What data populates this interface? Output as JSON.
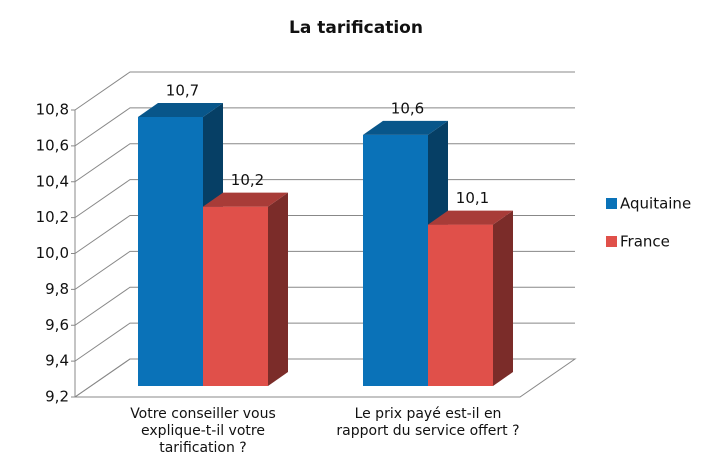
{
  "chart_data": {
    "type": "bar3d",
    "title": "La tarification",
    "categories": [
      "Votre conseiller vous explique-t-il votre tarification ?",
      "Le prix payé est-il en rapport du service offert ?"
    ],
    "series": [
      {
        "name": "Aquitaine",
        "color": "#0a72b8",
        "values": [
          10.7,
          10.6
        ],
        "value_labels": [
          "10,7",
          "10,6"
        ]
      },
      {
        "name": "France",
        "color": "#e0504a",
        "values": [
          10.2,
          10.1
        ],
        "value_labels": [
          "10,2",
          "10,1"
        ]
      }
    ],
    "ylim": [
      9.2,
      10.8
    ],
    "yticks": [
      {
        "value": 9.2,
        "label": "9,2"
      },
      {
        "value": 9.4,
        "label": "9,4"
      },
      {
        "value": 9.6,
        "label": "9,6"
      },
      {
        "value": 9.8,
        "label": "9,8"
      },
      {
        "value": 10.0,
        "label": "10,0"
      },
      {
        "value": 10.2,
        "label": "10,2"
      },
      {
        "value": 10.4,
        "label": "10,4"
      },
      {
        "value": 10.6,
        "label": "10,6"
      },
      {
        "value": 10.8,
        "label": "10,8"
      }
    ],
    "grid": true,
    "legend": "right"
  }
}
